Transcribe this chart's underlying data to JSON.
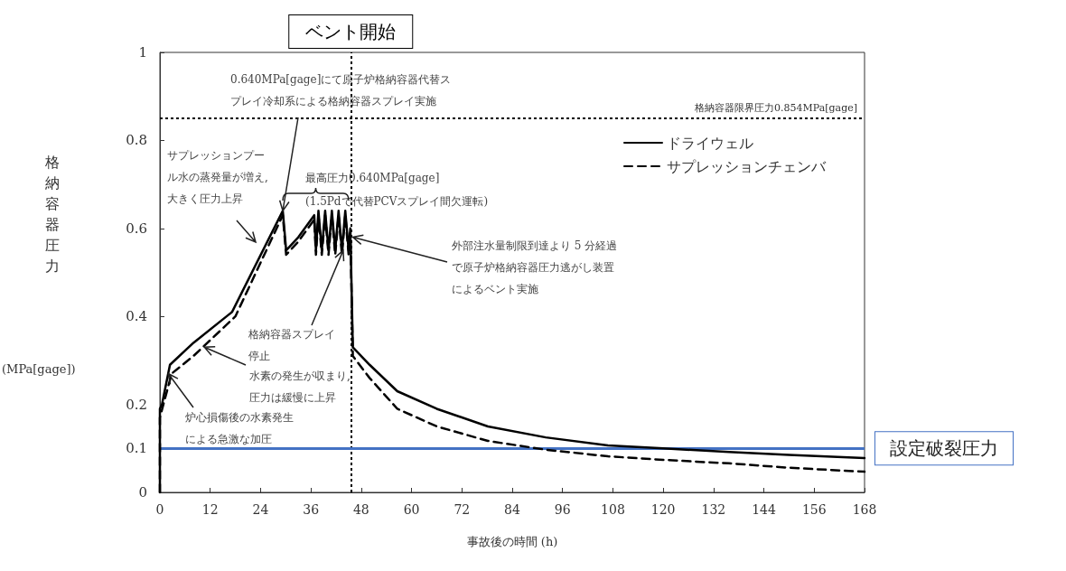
{
  "chart_data": {
    "type": "line",
    "xlabel": "事故後の時間 (h)",
    "ylabel": "格納容器圧力\n(MPa[gage])",
    "xlim": [
      0,
      168
    ],
    "xticks": [
      0,
      12,
      24,
      36,
      48,
      60,
      72,
      84,
      96,
      108,
      120,
      132,
      144,
      156,
      168
    ],
    "ylim": [
      0,
      1
    ],
    "yticks": [
      0,
      0.1,
      0.2,
      0.4,
      0.6,
      0.8,
      1
    ],
    "grid": false,
    "legend": "top right",
    "marker": "none",
    "series": [
      {
        "name": "ドライウェル",
        "color": "#000000",
        "line_style": "solid",
        "x": [
          0,
          0,
          0.5,
          2.4,
          8,
          17.2,
          29.3,
          30.1,
          33,
          36.8,
          37.2,
          37.8,
          38.6,
          39.4,
          40.2,
          41,
          41.8,
          42.6,
          43.4,
          44.2,
          45,
          45.4,
          46,
          50,
          56.6,
          66,
          78.2,
          92,
          106.8,
          120,
          135.7,
          150,
          168
        ],
        "values": [
          0,
          0.19,
          0.2,
          0.29,
          0.34,
          0.41,
          0.64,
          0.55,
          0.58,
          0.63,
          0.55,
          0.64,
          0.55,
          0.64,
          0.55,
          0.64,
          0.55,
          0.64,
          0.55,
          0.64,
          0.55,
          0.6,
          0.33,
          0.29,
          0.23,
          0.19,
          0.15,
          0.125,
          0.107,
          0.1,
          0.092,
          0.085,
          0.078
        ]
      },
      {
        "name": "サプレッションチェンバ",
        "color": "#000000",
        "line_style": "dashed",
        "x": [
          0,
          0,
          2.8,
          8,
          18,
          29.3,
          30.1,
          33,
          36.8,
          37.2,
          37.8,
          38.6,
          39.4,
          40.2,
          41,
          41.8,
          42.6,
          43.4,
          44.2,
          45,
          45.4,
          46,
          50,
          56.6,
          66,
          78.2,
          92,
          106.8,
          120,
          135.7,
          150,
          168
        ],
        "values": [
          0,
          0.17,
          0.27,
          0.31,
          0.4,
          0.63,
          0.54,
          0.57,
          0.62,
          0.54,
          0.63,
          0.54,
          0.63,
          0.54,
          0.63,
          0.54,
          0.63,
          0.54,
          0.63,
          0.54,
          0.59,
          0.31,
          0.26,
          0.19,
          0.15,
          0.117,
          0.097,
          0.082,
          0.074,
          0.066,
          0.056,
          0.047
        ]
      }
    ],
    "ref_lines": [
      {
        "axis": "y",
        "value": 0.854,
        "label": "格納容器限界圧力0.854MPa[gage]",
        "color": "#000000",
        "line_style": "dotted"
      },
      {
        "axis": "x",
        "value": 45.5,
        "label": "ベント開始",
        "color": "#000000",
        "line_style": "dotted"
      },
      {
        "axis": "y",
        "value": 0.1,
        "label": "設定破裂圧力",
        "color": "#4472c4",
        "line_style": "solid"
      }
    ],
    "annotations": [
      {
        "text": "0.640MPa[gage]にて原子炉格納容器代替スプレイ冷却系による格納容器スプレイ実施",
        "x": 29.3,
        "y": 0.64
      },
      "サプレッションプール水の蒸発量が増え,大きく圧力上昇",
      "最高圧力0.640MPa[gage] (1.5Pdで代替PCVスプレイ間欠運転)",
      {
        "text": "外部注水量制限到達より 5 分経過で原子炉格納容器圧力逃がし装置によるベント実施",
        "x": 46,
        "y": 0.58
      },
      {
        "text": "格納容器スプレイ停止",
        "x": 43.7,
        "y": 0.55
      },
      {
        "text": "水素の発生が収まり,圧力は緩慢に上昇",
        "x": 10.6,
        "y": 0.33
      },
      {
        "text": "炉心損傷後の水素発生による急激な加圧",
        "x": 2,
        "y": 0.27
      }
    ]
  }
}
